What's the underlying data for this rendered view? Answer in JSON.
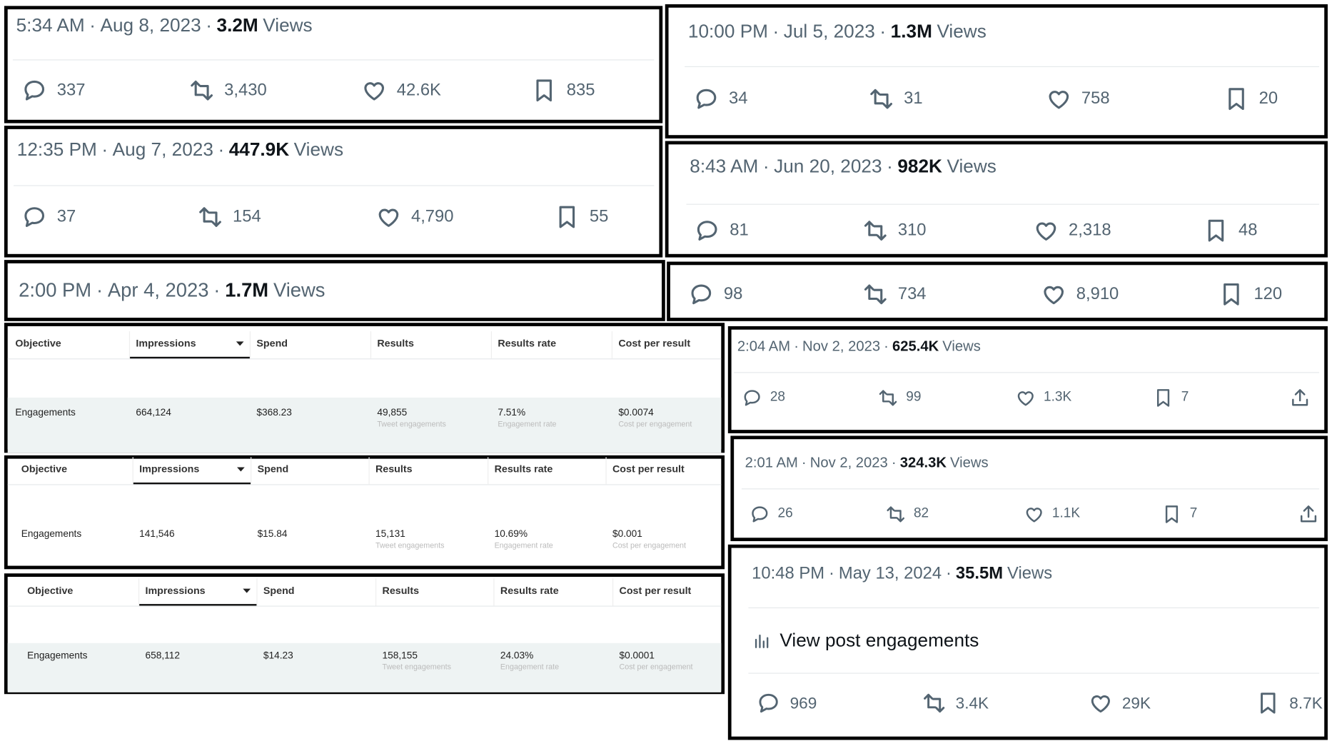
{
  "separator": "·",
  "views_label": "Views",
  "tweets": [
    {
      "time": "5:34 AM",
      "date": "Aug 8, 2023",
      "views": "3.2M",
      "replies": "337",
      "reposts": "3,430",
      "likes": "42.6K",
      "bookmarks": "835"
    },
    {
      "time": "12:35 PM",
      "date": "Aug 7, 2023",
      "views": "447.9K",
      "replies": "37",
      "reposts": "154",
      "likes": "4,790",
      "bookmarks": "55"
    },
    {
      "time": "2:00 PM",
      "date": "Apr 4, 2023",
      "views": "1.7M"
    },
    {
      "time": "10:00 PM",
      "date": "Jul 5, 2023",
      "views": "1.3M",
      "replies": "34",
      "reposts": "31",
      "likes": "758",
      "bookmarks": "20"
    },
    {
      "time": "8:43 AM",
      "date": "Jun 20, 2023",
      "views": "982K",
      "replies": "81",
      "reposts": "310",
      "likes": "2,318",
      "bookmarks": "48"
    },
    {
      "replies": "98",
      "reposts": "734",
      "likes": "8,910",
      "bookmarks": "120"
    },
    {
      "time": "2:04 AM",
      "date": "Nov 2, 2023",
      "views": "625.4K",
      "replies": "28",
      "reposts": "99",
      "likes": "1.3K",
      "bookmarks": "7"
    },
    {
      "time": "2:01 AM",
      "date": "Nov 2, 2023",
      "views": "324.3K",
      "replies": "26",
      "reposts": "82",
      "likes": "1.1K",
      "bookmarks": "7"
    },
    {
      "time": "10:48 PM",
      "date": "May 13, 2024",
      "views": "35.5M",
      "engagements_link": "View post engagements",
      "replies": "969",
      "reposts": "3.4K",
      "likes": "29K",
      "bookmarks": "8.7K"
    }
  ],
  "ad_tables": [
    {
      "headers": [
        "Objective",
        "Impressions",
        "Spend",
        "Results",
        "Results rate",
        "Cost per result"
      ],
      "row": [
        "Engagements",
        "664,124",
        "$368.23",
        "49,855",
        "7.51%",
        "$0.0074"
      ],
      "sublabels": [
        null,
        null,
        null,
        "Tweet engagements",
        "Engagement rate",
        "Cost per engagement"
      ]
    },
    {
      "headers": [
        "Objective",
        "Impressions",
        "Spend",
        "Results",
        "Results rate",
        "Cost per result"
      ],
      "row": [
        "Engagements",
        "141,546",
        "$15.84",
        "15,131",
        "10.69%",
        "$0.001"
      ],
      "sublabels": [
        null,
        null,
        null,
        "Tweet engagements",
        "Engagement rate",
        "Cost per engagement"
      ]
    },
    {
      "headers": [
        "Objective",
        "Impressions",
        "Spend",
        "Results",
        "Results rate",
        "Cost per result"
      ],
      "row": [
        "Engagements",
        "658,112",
        "$14.23",
        "158,155",
        "24.03%",
        "$0.0001"
      ],
      "sublabels": [
        null,
        null,
        null,
        "Tweet engagements",
        "Engagement rate",
        "Cost per engagement"
      ]
    }
  ]
}
